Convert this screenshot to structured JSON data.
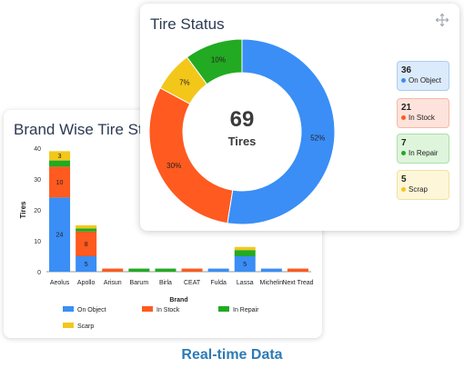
{
  "brand_card": {
    "title": "Brand Wise Tire Status"
  },
  "status_card": {
    "title": "Tire Status",
    "move_icon": "move-icon",
    "total_value": "69",
    "total_label": "Tires",
    "stats": [
      {
        "value": "36",
        "label": "On Object",
        "bg": "#dcebfb",
        "border": "#a9cdf2",
        "dot": "#3a8ef6"
      },
      {
        "value": "21",
        "label": "In Stock",
        "bg": "#fde3db",
        "border": "#f4b9a5",
        "dot": "#ff5a1f"
      },
      {
        "value": "7",
        "label": "In Repair",
        "bg": "#def5dc",
        "border": "#acdfa7",
        "dot": "#22aa22"
      },
      {
        "value": "5",
        "label": "Scrap",
        "bg": "#fdf6d8",
        "border": "#efe2a5",
        "dot": "#f3c71a"
      }
    ]
  },
  "footer": {
    "text": "Real-time Data"
  },
  "chart_data": [
    {
      "type": "bar",
      "stacked": true,
      "title": "Brand Wise Tire Status",
      "xlabel": "Brand",
      "ylabel": "Tires",
      "ylim": [
        0,
        40
      ],
      "yticks": [
        0,
        10,
        20,
        30,
        40
      ],
      "categories": [
        "Aeolus",
        "Apollo",
        "Arisun",
        "Barum",
        "Birla",
        "CEAT",
        "Fulda",
        "Lassa",
        "Michelin",
        "Next Tread"
      ],
      "series": [
        {
          "name": "On Object",
          "color": "#3a8ef6",
          "values": [
            24,
            5,
            0,
            0,
            0,
            0,
            1,
            5,
            1,
            0
          ]
        },
        {
          "name": "In Stock",
          "color": "#ff5a1f",
          "values": [
            10,
            8,
            1,
            0,
            0,
            1,
            0,
            0,
            0,
            1
          ]
        },
        {
          "name": "In Repair",
          "color": "#22aa22",
          "values": [
            2,
            1,
            0,
            1,
            1,
            0,
            0,
            2,
            0,
            0
          ]
        },
        {
          "name": "Scarp",
          "color": "#f3c71a",
          "values": [
            3,
            1,
            0,
            0,
            0,
            0,
            0,
            1,
            0,
            0
          ]
        }
      ],
      "data_labels": [
        {
          "category": "Aeolus",
          "series": "On Object",
          "text": "24"
        },
        {
          "category": "Aeolus",
          "series": "In Stock",
          "text": "10"
        },
        {
          "category": "Aeolus",
          "series": "Scarp",
          "text": "3"
        },
        {
          "category": "Apollo",
          "series": "On Object",
          "text": "5"
        },
        {
          "category": "Apollo",
          "series": "In Stock",
          "text": "8"
        },
        {
          "category": "Lassa",
          "series": "On Object",
          "text": "5"
        }
      ],
      "legend_position": "bottom"
    },
    {
      "type": "pie",
      "donut": true,
      "title": "Tire Status",
      "center_value": "69",
      "center_label": "Tires",
      "slices": [
        {
          "name": "On Object",
          "value": 52,
          "label": "52%",
          "color": "#3a8ef6"
        },
        {
          "name": "In Stock",
          "value": 30,
          "label": "30%",
          "color": "#ff5a1f"
        },
        {
          "name": "Scrap",
          "value": 7,
          "label": "7%",
          "color": "#f3c71a"
        },
        {
          "name": "In Repair",
          "value": 10,
          "label": "10%",
          "color": "#22aa22"
        }
      ]
    }
  ]
}
